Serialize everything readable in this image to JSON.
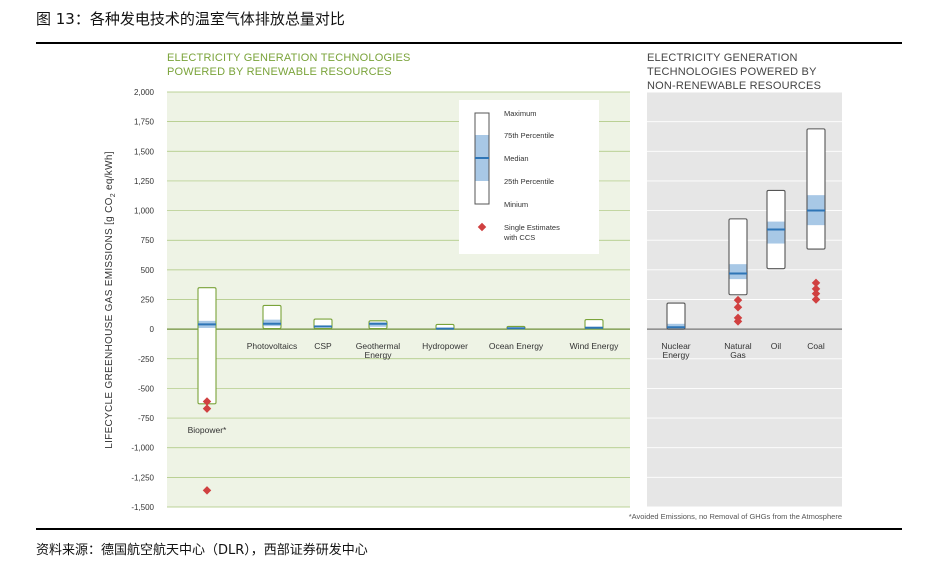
{
  "figure_title": "图 13：各种发电技术的温室气体排放总量对比",
  "source": "资料来源：德国航空航天中心（DLR），西部证券研发中心",
  "colors": {
    "renewable_panel_bg": "#eef3e5",
    "renewable_box_stroke": "#7aa33a",
    "nonrenewable_panel_bg": "#e6e6e6",
    "box_stroke_grey": "#555555",
    "iqr_fill": "#a8c8e6",
    "median": "#2e75b6",
    "estimate": "#d04040"
  },
  "chart_data": {
    "type": "box",
    "title": "",
    "ylabel": "LIFECYCLE GREENHOUSE GAS EMISSIONS [g CO2 eq/kWh]",
    "ylim": [
      -1500,
      2000
    ],
    "yticks": [
      2000,
      1750,
      1500,
      1250,
      1000,
      750,
      500,
      250,
      0,
      -250,
      -500,
      -750,
      -1000,
      -1250,
      -1500
    ],
    "ytick_labels": [
      "2,000",
      "1,750",
      "1,500",
      "1,250",
      "1,000",
      "750",
      "500",
      "250",
      "0",
      "-250",
      "-500",
      "-750",
      "-1,000",
      "-1,250",
      "-1,500"
    ],
    "renewable_header": [
      "ELECTRICITY GENERATION TECHNOLOGIES",
      "POWERED BY RENEWABLE RESOURCES"
    ],
    "nonrenewable_header": [
      "ELECTRICITY GENERATION",
      "TECHNOLOGIES POWERED BY",
      "NON-RENEWABLE RESOURCES"
    ],
    "footnote": "*Avoided Emissions, no Removal of GHGs from the Atmosphere",
    "legend": {
      "maximum": "Maximum",
      "p75": "75th Percentile",
      "median": "Median",
      "p25": "25th Percentile",
      "minimum": "Minium",
      "estimates": [
        "Single Estimates",
        "with CCS"
      ]
    },
    "categories": [
      {
        "label": [
          "Biopower*"
        ],
        "group": "renewable",
        "min": -630,
        "p25": 10,
        "median": 40,
        "p75": 70,
        "max": 350,
        "estimates": [
          -610,
          -670,
          -1360
        ]
      },
      {
        "label": [
          "Photovoltaics"
        ],
        "group": "renewable",
        "min": 5,
        "p25": 25,
        "median": 46,
        "p75": 80,
        "max": 200,
        "estimates": []
      },
      {
        "label": [
          "CSP"
        ],
        "group": "renewable",
        "min": 5,
        "p25": 14,
        "median": 22,
        "p75": 32,
        "max": 85,
        "estimates": []
      },
      {
        "label": [
          "Geothermal",
          "Energy"
        ],
        "group": "renewable",
        "min": 5,
        "p25": 20,
        "median": 45,
        "p75": 57,
        "max": 70,
        "estimates": []
      },
      {
        "label": [
          "Hydropower"
        ],
        "group": "renewable",
        "min": 0,
        "p25": 3,
        "median": 4,
        "p75": 7,
        "max": 40,
        "estimates": []
      },
      {
        "label": [
          "Ocean Energy"
        ],
        "group": "renewable",
        "min": 2,
        "p25": 6,
        "median": 8,
        "p75": 9,
        "max": 23,
        "estimates": []
      },
      {
        "label": [
          "Wind Energy"
        ],
        "group": "renewable",
        "min": 2,
        "p25": 8,
        "median": 12,
        "p75": 20,
        "max": 81,
        "estimates": []
      },
      {
        "label": [
          "Nuclear",
          "Energy"
        ],
        "group": "nonrenewable",
        "min": 1,
        "p25": 8,
        "median": 16,
        "p75": 45,
        "max": 220,
        "estimates": []
      },
      {
        "label": [
          "Natural",
          "Gas"
        ],
        "group": "nonrenewable",
        "min": 290,
        "p25": 422,
        "median": 469,
        "p75": 548,
        "max": 930,
        "estimates": [
          245,
          185,
          95,
          65
        ]
      },
      {
        "label": [
          "Oil"
        ],
        "group": "nonrenewable",
        "min": 510,
        "p25": 722,
        "median": 840,
        "p75": 907,
        "max": 1170,
        "estimates": []
      },
      {
        "label": [
          "Coal"
        ],
        "group": "nonrenewable",
        "min": 675,
        "p25": 877,
        "median": 1001,
        "p75": 1130,
        "max": 1689,
        "estimates": [
          390,
          340,
          300,
          250
        ]
      }
    ]
  }
}
